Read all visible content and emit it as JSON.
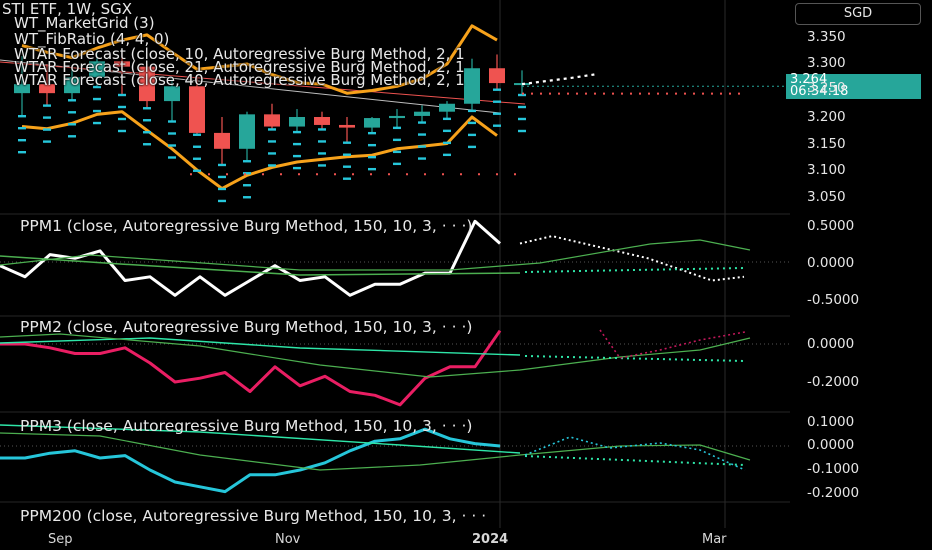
{
  "colors": {
    "up": "#26a69a",
    "down": "#ef5350",
    "band": "#f7a21b",
    "ppm1": "#ffffff",
    "ppm2": "#e91e63",
    "ppm3": "#26c6da",
    "ma": "#4caf50",
    "ma2": "#2ee6a8"
  },
  "header": {
    "currency": "SGD",
    "symbol_line": "STI ETF, 1W, SGX",
    "indicators": [
      "WT_MarketGrid (3)",
      "WT_FibRatio (4, 4, 0)",
      "WTAR Forecast (close, 10, Autoregressive Burg Method, 2, 1",
      "WTAR Forecast (close, 21, Autoregressive Burg Method, 2, 1",
      "WTAR Forecast (close, 40, Autoregressive Burg Method, 2, 1"
    ]
  },
  "price_tag": {
    "price": "3.264",
    "countdown": "06:34:18"
  },
  "panes": {
    "price": {
      "ticks": [
        "3.350",
        "3.300",
        "3.250",
        "3.200",
        "3.150",
        "3.100",
        "3.050"
      ]
    },
    "ppm1": {
      "title": "PPM1 (close, Autoregressive Burg Method, 150, 10, 3, · · ·)",
      "ticks": [
        "0.5000",
        "0.0000",
        "-0.5000"
      ]
    },
    "ppm2": {
      "title": "PPM2 (close, Autoregressive Burg Method, 150, 10, 3, · · ·)",
      "ticks": [
        "0.0000",
        "-0.2000"
      ]
    },
    "ppm3": {
      "title": "PPM3 (close, Autoregressive Burg Method, 150, 10, 3, · · ·)",
      "ticks": [
        "0.1000",
        "0.0000",
        "-0.1000",
        "-0.2000"
      ]
    },
    "ppm200": {
      "title": "PPM200 (close, Autoregressive Burg Method, 150, 10, 3, · · ·"
    }
  },
  "x_axis": {
    "labels": [
      "Sep",
      "Nov",
      "2024",
      "Mar"
    ]
  },
  "chart_data": {
    "type": "candlestick",
    "candles": [
      {
        "o": 3.245,
        "h": 3.315,
        "l": 3.2,
        "c": 3.262
      },
      {
        "o": 3.262,
        "h": 3.3,
        "l": 3.22,
        "c": 3.245
      },
      {
        "o": 3.245,
        "h": 3.29,
        "l": 3.23,
        "c": 3.275
      },
      {
        "o": 3.275,
        "h": 3.325,
        "l": 3.255,
        "c": 3.305
      },
      {
        "o": 3.305,
        "h": 3.32,
        "l": 3.24,
        "c": 3.295
      },
      {
        "o": 3.295,
        "h": 3.3,
        "l": 3.215,
        "c": 3.23
      },
      {
        "o": 3.23,
        "h": 3.275,
        "l": 3.19,
        "c": 3.258
      },
      {
        "o": 3.258,
        "h": 3.28,
        "l": 3.165,
        "c": 3.17
      },
      {
        "o": 3.17,
        "h": 3.2,
        "l": 3.108,
        "c": 3.14
      },
      {
        "o": 3.14,
        "h": 3.21,
        "l": 3.115,
        "c": 3.205
      },
      {
        "o": 3.205,
        "h": 3.225,
        "l": 3.175,
        "c": 3.182
      },
      {
        "o": 3.182,
        "h": 3.215,
        "l": 3.17,
        "c": 3.2
      },
      {
        "o": 3.2,
        "h": 3.21,
        "l": 3.175,
        "c": 3.185
      },
      {
        "o": 3.185,
        "h": 3.2,
        "l": 3.15,
        "c": 3.18
      },
      {
        "o": 3.18,
        "h": 3.2,
        "l": 3.168,
        "c": 3.198
      },
      {
        "o": 3.198,
        "h": 3.215,
        "l": 3.178,
        "c": 3.202
      },
      {
        "o": 3.202,
        "h": 3.222,
        "l": 3.188,
        "c": 3.21
      },
      {
        "o": 3.21,
        "h": 3.23,
        "l": 3.195,
        "c": 3.225
      },
      {
        "o": 3.225,
        "h": 3.31,
        "l": 3.21,
        "c": 3.292
      },
      {
        "o": 3.292,
        "h": 3.318,
        "l": 3.25,
        "c": 3.264
      },
      {
        "o": 3.264,
        "h": 3.288,
        "l": 3.24,
        "c": 3.264
      }
    ],
    "upper_band": [
      3.335,
      3.322,
      3.312,
      3.33,
      3.345,
      3.355,
      3.322,
      3.29,
      3.295,
      3.3,
      3.28,
      3.265,
      3.262,
      3.245,
      3.25,
      3.258,
      3.272,
      3.3,
      3.372,
      3.345
    ],
    "lower_band": [
      3.182,
      3.178,
      3.188,
      3.205,
      3.21,
      3.175,
      3.14,
      3.1,
      3.065,
      3.09,
      3.105,
      3.115,
      3.12,
      3.125,
      3.128,
      3.14,
      3.145,
      3.15,
      3.2,
      3.165
    ],
    "forecast_white": [
      3.262,
      3.268,
      3.274,
      3.281
    ],
    "forecast_red_dotted": 3.244,
    "lower_target": 3.092,
    "ppm1": [
      -0.05,
      -0.2,
      0.1,
      0.05,
      0.15,
      -0.25,
      -0.2,
      -0.45,
      -0.2,
      -0.45,
      -0.25,
      -0.05,
      -0.25,
      -0.2,
      -0.45,
      -0.3,
      -0.3,
      -0.15,
      -0.15,
      0.55,
      0.25
    ],
    "ppm1_forecast": [
      0.25,
      0.35,
      0.25,
      0.15,
      0.05,
      -0.1,
      -0.25,
      -0.2
    ],
    "ppm2": [
      0.0,
      0.0,
      -0.02,
      -0.05,
      -0.05,
      -0.02,
      -0.1,
      -0.2,
      -0.18,
      -0.15,
      -0.25,
      -0.12,
      -0.22,
      -0.17,
      -0.25,
      -0.27,
      -0.32,
      -0.18,
      -0.12,
      -0.12,
      0.07
    ],
    "ppm3": [
      -0.05,
      -0.05,
      -0.03,
      -0.02,
      -0.05,
      -0.04,
      -0.1,
      -0.15,
      -0.17,
      -0.19,
      -0.12,
      -0.12,
      -0.1,
      -0.07,
      -0.02,
      0.02,
      0.03,
      0.07,
      0.03,
      0.01,
      0.0
    ]
  }
}
